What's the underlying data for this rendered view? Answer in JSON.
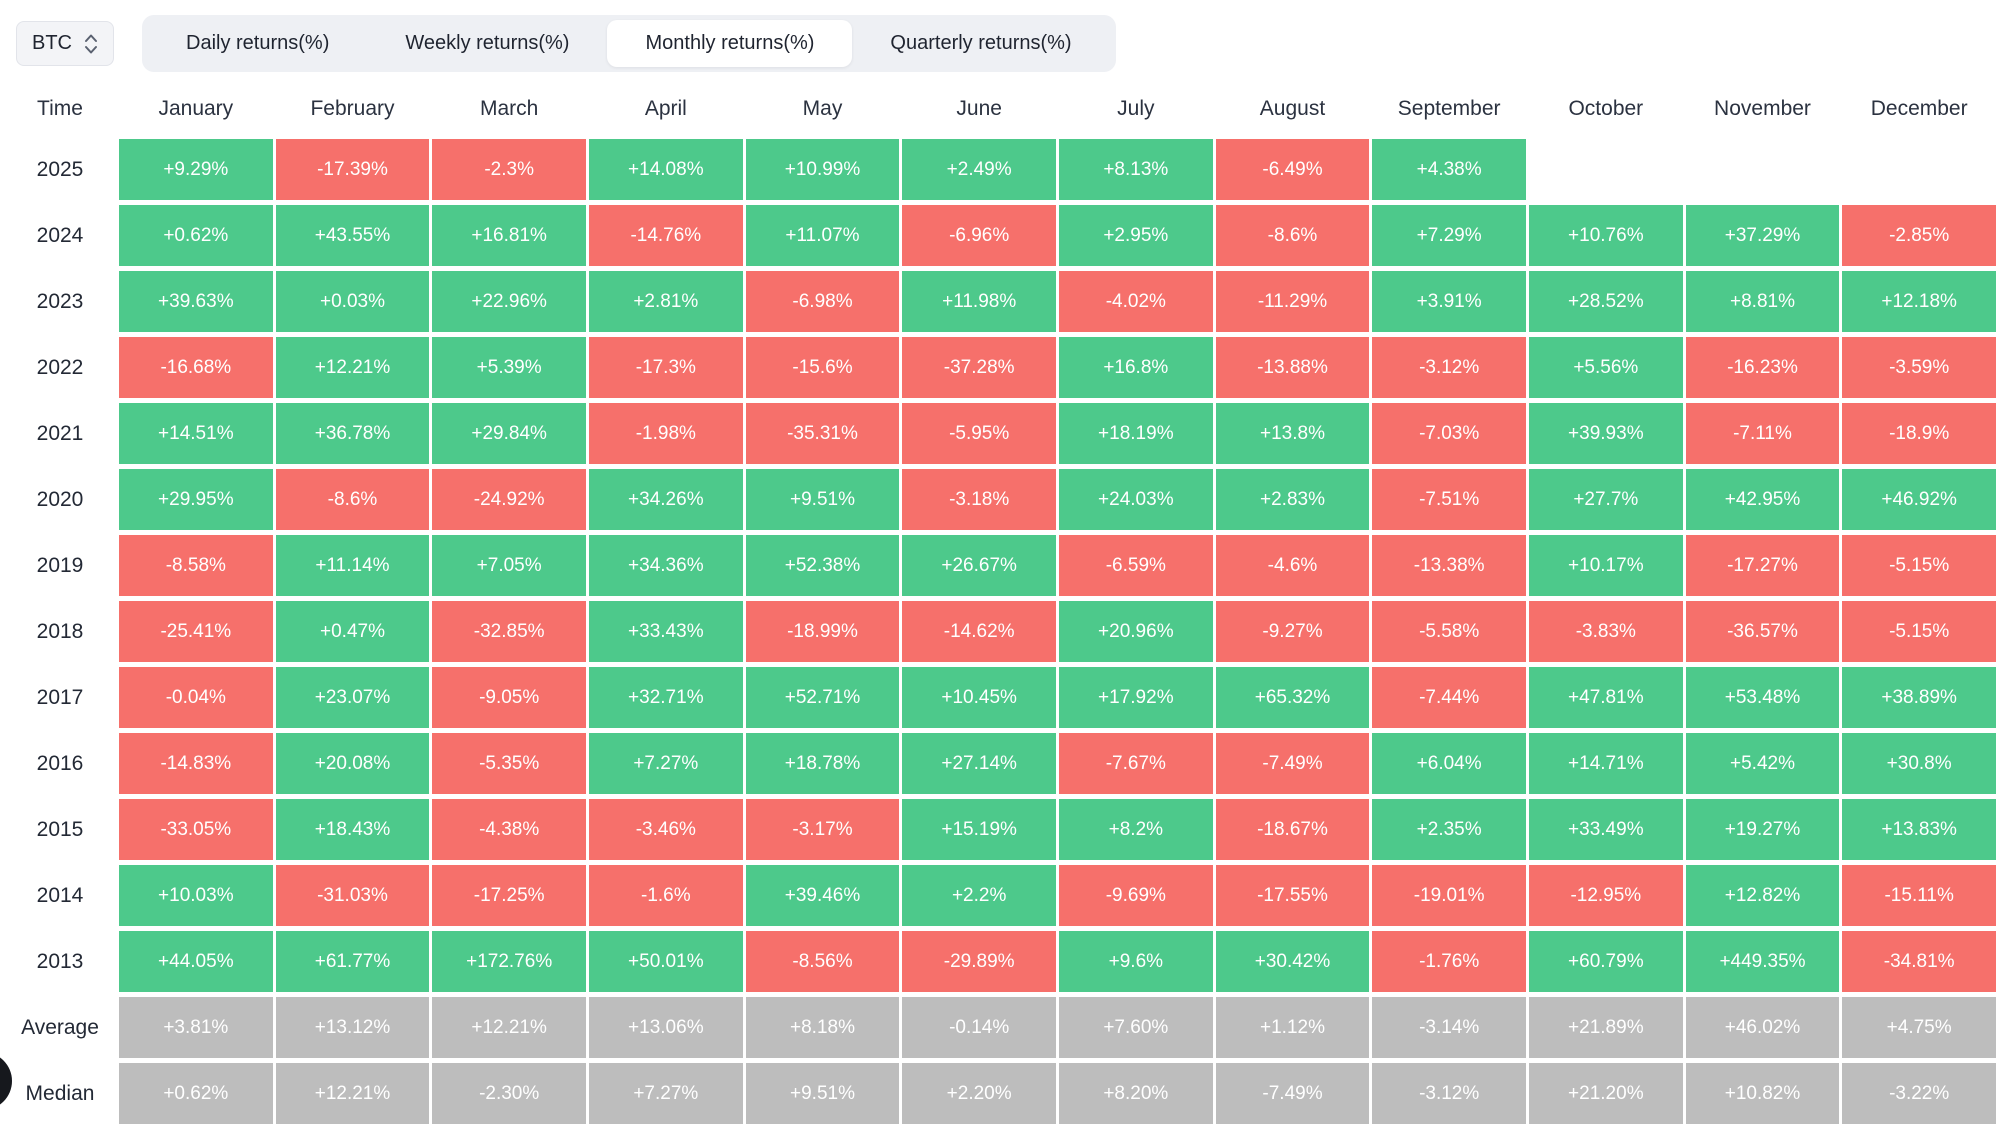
{
  "controls": {
    "symbol_select": {
      "value": "BTC"
    },
    "tabs": [
      {
        "label": "Daily returns(%)",
        "active": false
      },
      {
        "label": "Weekly returns(%)",
        "active": false
      },
      {
        "label": "Monthly returns(%)",
        "active": true
      },
      {
        "label": "Quarterly returns(%)",
        "active": false
      }
    ]
  },
  "colors": {
    "positive": "#4DC98B",
    "negative": "#F6706B",
    "summary": "#BDBDBD"
  },
  "table": {
    "time_header": "Time",
    "months": [
      "January",
      "February",
      "March",
      "April",
      "May",
      "June",
      "July",
      "August",
      "September",
      "October",
      "November",
      "December"
    ],
    "rows": [
      {
        "label": "2025",
        "type": "year",
        "values": [
          "+9.29%",
          "-17.39%",
          "-2.3%",
          "+14.08%",
          "+10.99%",
          "+2.49%",
          "+8.13%",
          "-6.49%",
          "+4.38%",
          "",
          "",
          ""
        ]
      },
      {
        "label": "2024",
        "type": "year",
        "values": [
          "+0.62%",
          "+43.55%",
          "+16.81%",
          "-14.76%",
          "+11.07%",
          "-6.96%",
          "+2.95%",
          "-8.6%",
          "+7.29%",
          "+10.76%",
          "+37.29%",
          "-2.85%"
        ]
      },
      {
        "label": "2023",
        "type": "year",
        "values": [
          "+39.63%",
          "+0.03%",
          "+22.96%",
          "+2.81%",
          "-6.98%",
          "+11.98%",
          "-4.02%",
          "-11.29%",
          "+3.91%",
          "+28.52%",
          "+8.81%",
          "+12.18%"
        ]
      },
      {
        "label": "2022",
        "type": "year",
        "values": [
          "-16.68%",
          "+12.21%",
          "+5.39%",
          "-17.3%",
          "-15.6%",
          "-37.28%",
          "+16.8%",
          "-13.88%",
          "-3.12%",
          "+5.56%",
          "-16.23%",
          "-3.59%"
        ]
      },
      {
        "label": "2021",
        "type": "year",
        "values": [
          "+14.51%",
          "+36.78%",
          "+29.84%",
          "-1.98%",
          "-35.31%",
          "-5.95%",
          "+18.19%",
          "+13.8%",
          "-7.03%",
          "+39.93%",
          "-7.11%",
          "-18.9%"
        ]
      },
      {
        "label": "2020",
        "type": "year",
        "values": [
          "+29.95%",
          "-8.6%",
          "-24.92%",
          "+34.26%",
          "+9.51%",
          "-3.18%",
          "+24.03%",
          "+2.83%",
          "-7.51%",
          "+27.7%",
          "+42.95%",
          "+46.92%"
        ]
      },
      {
        "label": "2019",
        "type": "year",
        "values": [
          "-8.58%",
          "+11.14%",
          "+7.05%",
          "+34.36%",
          "+52.38%",
          "+26.67%",
          "-6.59%",
          "-4.6%",
          "-13.38%",
          "+10.17%",
          "-17.27%",
          "-5.15%"
        ]
      },
      {
        "label": "2018",
        "type": "year",
        "values": [
          "-25.41%",
          "+0.47%",
          "-32.85%",
          "+33.43%",
          "-18.99%",
          "-14.62%",
          "+20.96%",
          "-9.27%",
          "-5.58%",
          "-3.83%",
          "-36.57%",
          "-5.15%"
        ]
      },
      {
        "label": "2017",
        "type": "year",
        "values": [
          "-0.04%",
          "+23.07%",
          "-9.05%",
          "+32.71%",
          "+52.71%",
          "+10.45%",
          "+17.92%",
          "+65.32%",
          "-7.44%",
          "+47.81%",
          "+53.48%",
          "+38.89%"
        ]
      },
      {
        "label": "2016",
        "type": "year",
        "values": [
          "-14.83%",
          "+20.08%",
          "-5.35%",
          "+7.27%",
          "+18.78%",
          "+27.14%",
          "-7.67%",
          "-7.49%",
          "+6.04%",
          "+14.71%",
          "+5.42%",
          "+30.8%"
        ]
      },
      {
        "label": "2015",
        "type": "year",
        "values": [
          "-33.05%",
          "+18.43%",
          "-4.38%",
          "-3.46%",
          "-3.17%",
          "+15.19%",
          "+8.2%",
          "-18.67%",
          "+2.35%",
          "+33.49%",
          "+19.27%",
          "+13.83%"
        ]
      },
      {
        "label": "2014",
        "type": "year",
        "values": [
          "+10.03%",
          "-31.03%",
          "-17.25%",
          "-1.6%",
          "+39.46%",
          "+2.2%",
          "-9.69%",
          "-17.55%",
          "-19.01%",
          "-12.95%",
          "+12.82%",
          "-15.11%"
        ]
      },
      {
        "label": "2013",
        "type": "year",
        "values": [
          "+44.05%",
          "+61.77%",
          "+172.76%",
          "+50.01%",
          "-8.56%",
          "-29.89%",
          "+9.6%",
          "+30.42%",
          "-1.76%",
          "+60.79%",
          "+449.35%",
          "-34.81%"
        ]
      },
      {
        "label": "Average",
        "type": "summary",
        "values": [
          "+3.81%",
          "+13.12%",
          "+12.21%",
          "+13.06%",
          "+8.18%",
          "-0.14%",
          "+7.60%",
          "+1.12%",
          "-3.14%",
          "+21.89%",
          "+46.02%",
          "+4.75%"
        ]
      },
      {
        "label": "Median",
        "type": "summary",
        "values": [
          "+0.62%",
          "+12.21%",
          "-2.30%",
          "+7.27%",
          "+9.51%",
          "+2.20%",
          "+8.20%",
          "-7.49%",
          "-3.12%",
          "+21.20%",
          "+10.82%",
          "-3.22%"
        ]
      }
    ]
  }
}
